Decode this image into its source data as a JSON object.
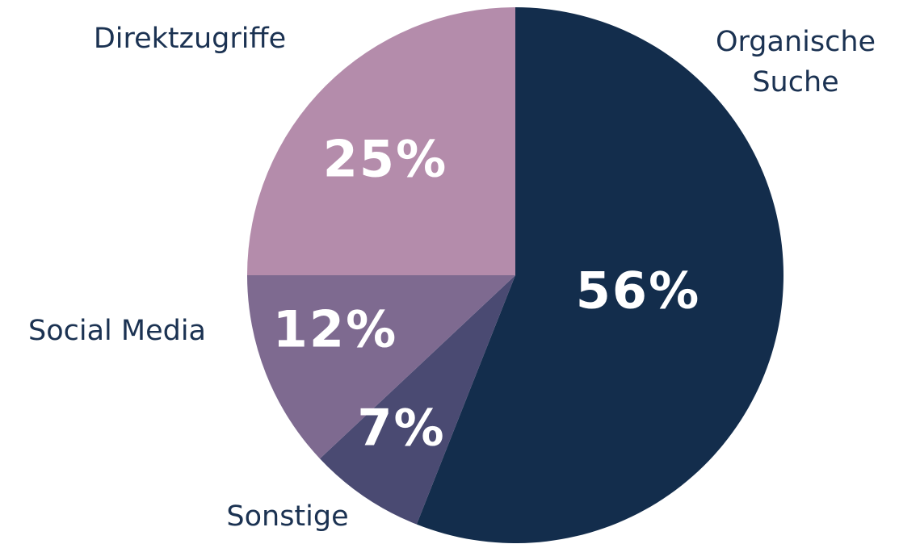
{
  "chart_data": {
    "type": "pie",
    "categories": [
      "Organische Suche",
      "Sonstige",
      "Social Media",
      "Direktzugriffe"
    ],
    "values": [
      56,
      7,
      12,
      25
    ],
    "value_labels": [
      "56%",
      "7%",
      "12%",
      "25%"
    ],
    "colors": [
      "#132d4c",
      "#4a4a72",
      "#7e6a90",
      "#b48cab"
    ]
  }
}
